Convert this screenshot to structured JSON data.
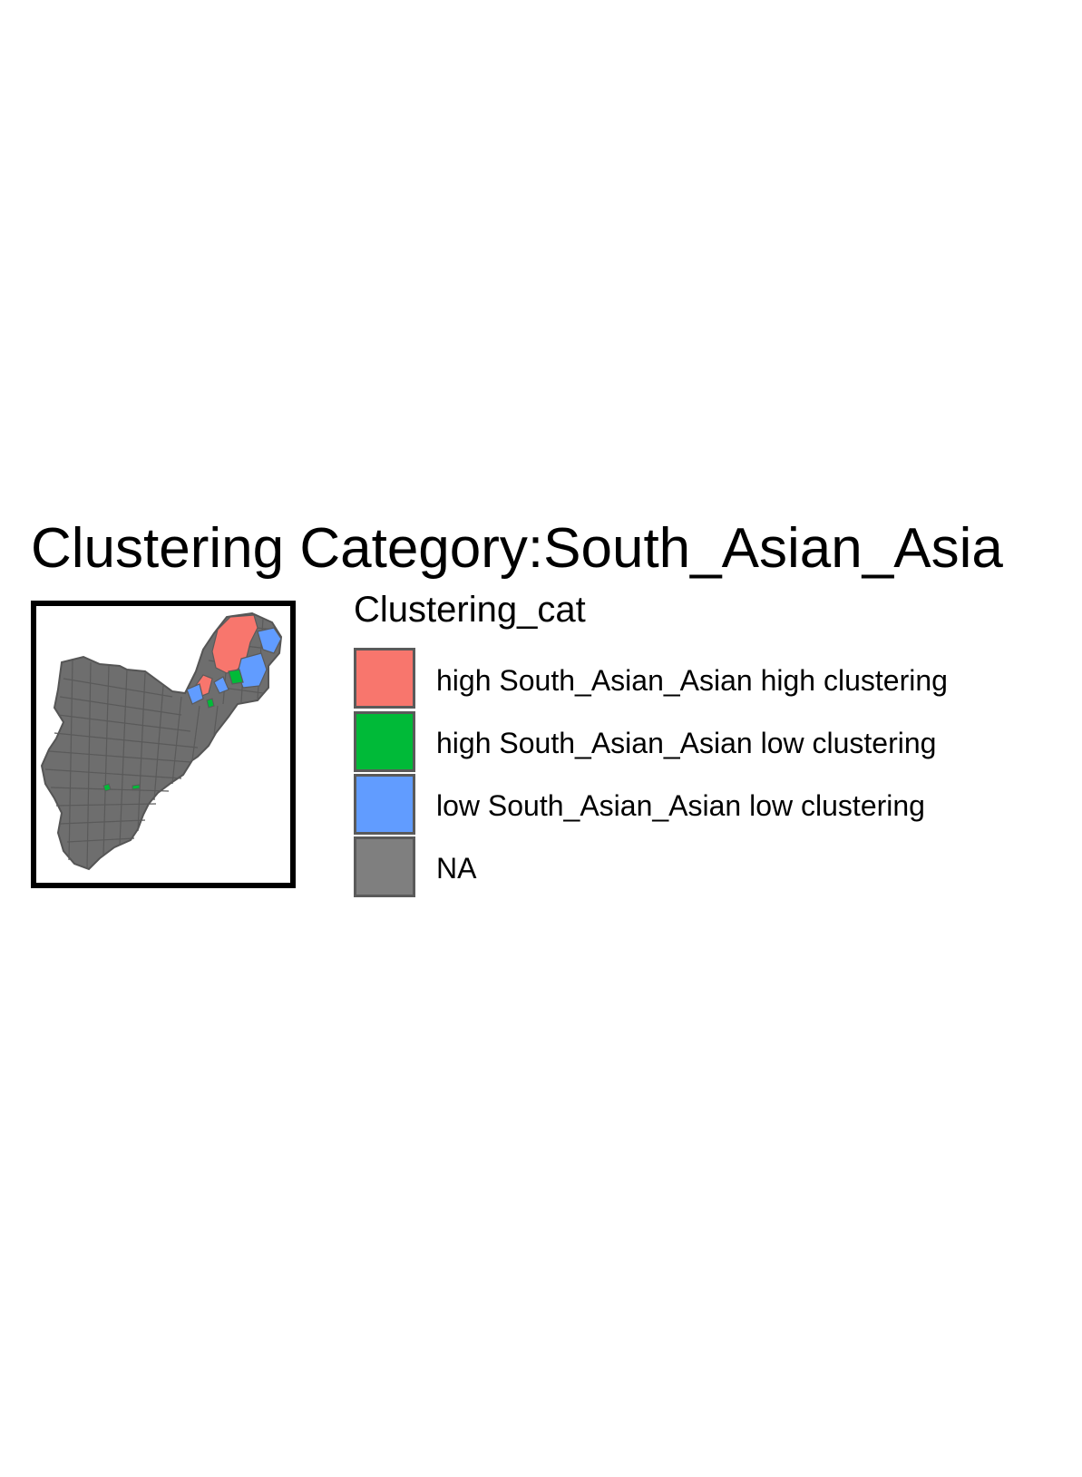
{
  "title": "Clustering Category:South_Asian_Asia",
  "legend": {
    "title": "Clustering_cat",
    "items": [
      {
        "label": "high South_Asian_Asian high clustering",
        "color": "#F8766D"
      },
      {
        "label": "high South_Asian_Asian low clustering",
        "color": "#00BA38"
      },
      {
        "label": "low South_Asian_Asian low clustering",
        "color": "#619CFF"
      },
      {
        "label": "NA",
        "color": "#7F7F7F"
      }
    ]
  },
  "map": {
    "base_fill": "#6E6E6E",
    "tract_border": "#555555",
    "frame_color": "#000000"
  }
}
